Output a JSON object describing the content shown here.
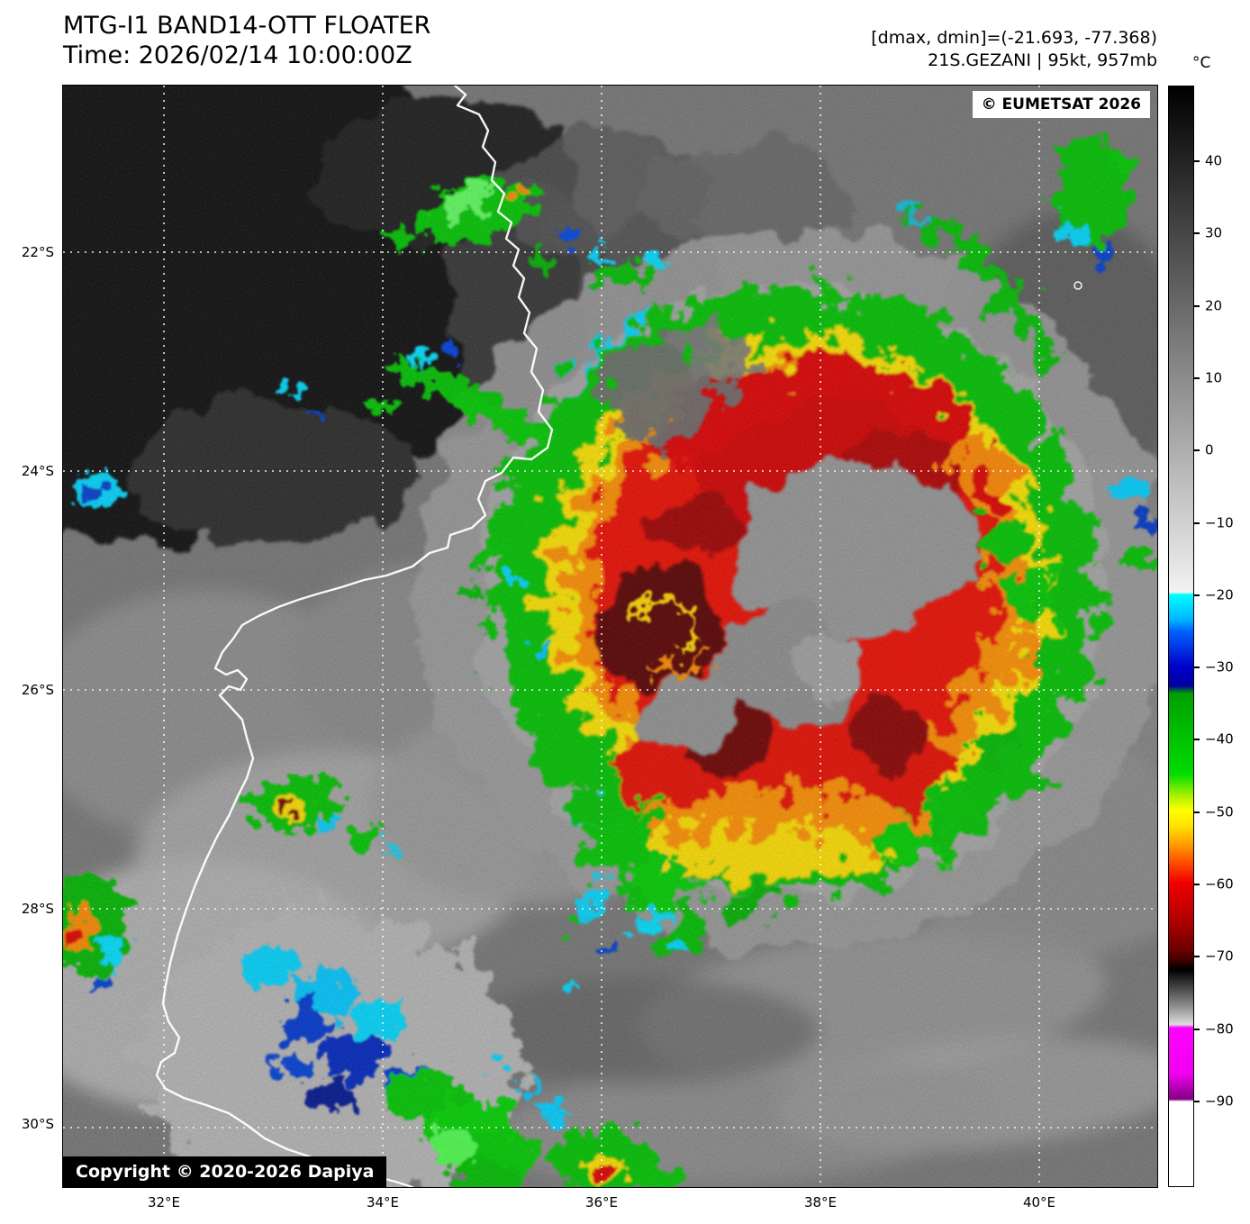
{
  "header": {
    "title_line1": "MTG-I1 BAND14-OTT FLOATER",
    "title_line2": "Time: 2026/02/14 10:00:00Z",
    "dmax_dmin": "[dmax, dmin]=(-21.693, -77.368)",
    "storm_info": "21S.GEZANI | 95kt, 957mb"
  },
  "map": {
    "eumetsat_badge": "© EUMETSAT 2026",
    "copyright_badge": "Copyright © 2020-2026 Dapiya",
    "lat_labels": [
      "22°S",
      "24°S",
      "26°S",
      "28°S",
      "30°S"
    ],
    "lon_labels": [
      "32°E",
      "34°E",
      "36°E",
      "38°E",
      "40°E"
    ]
  },
  "colorbar": {
    "unit_label": "°C",
    "tick_labels": [
      "40",
      "30",
      "20",
      "10",
      "0",
      "−10",
      "−20",
      "−30",
      "−40",
      "−50",
      "−60",
      "−70",
      "−80",
      "−90"
    ],
    "gradient": [
      [
        0,
        "#000000"
      ],
      [
        46.0,
        "#f2f2f2"
      ],
      [
        46.2,
        "#00ffff"
      ],
      [
        48.5,
        "#00b4ff"
      ],
      [
        49.5,
        "#0064ff"
      ],
      [
        52.8,
        "#0000c8"
      ],
      [
        54.5,
        "#0000a0"
      ],
      [
        55.2,
        "#00a000"
      ],
      [
        62.5,
        "#00dc00"
      ],
      [
        64.5,
        "#aaf000"
      ],
      [
        65.8,
        "#ffff00"
      ],
      [
        67.2,
        "#ffe400"
      ],
      [
        69.2,
        "#ff9000"
      ],
      [
        70.5,
        "#ff5000"
      ],
      [
        72.4,
        "#f00000"
      ],
      [
        75.7,
        "#b40000"
      ],
      [
        78.5,
        "#6e0000"
      ],
      [
        79.5,
        "#3c0000"
      ],
      [
        80.3,
        "#000000"
      ],
      [
        81.3,
        "#2a2a2a"
      ],
      [
        83.6,
        "#8c8c8c"
      ],
      [
        85.3,
        "#dcdcdc"
      ],
      [
        85.6,
        "#ff00ff"
      ],
      [
        89.8,
        "#f000f0"
      ],
      [
        92.1,
        "#820082"
      ],
      [
        92.3,
        "#ffffff"
      ],
      [
        100,
        "#ffffff"
      ]
    ]
  }
}
